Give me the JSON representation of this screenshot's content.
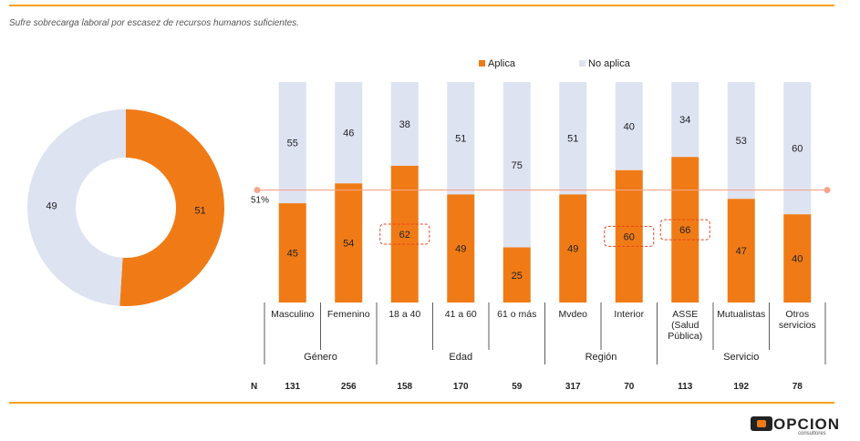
{
  "subtitle": "Sufre sobrecarga laboral por escasez de recursos humanos suficientes.",
  "logo": {
    "name": "OPCION",
    "tagline": "consultores"
  },
  "colors": {
    "aplica": "#f07b16",
    "no_aplica": "#dee3f2",
    "accent_rule": "#f7a21b",
    "ref_line": "#f4a58c"
  },
  "chart_data": [
    {
      "type": "pie",
      "variant": "donut",
      "slices": [
        {
          "label": "Aplica",
          "value": 51
        },
        {
          "label": "No aplica",
          "value": 49
        }
      ]
    },
    {
      "type": "bar",
      "stacked": true,
      "legend": [
        "Aplica",
        "No aplica"
      ],
      "legend_position": "top",
      "categories": [
        "Masculino",
        "Femenino",
        "18 a 40",
        "41 a 60",
        "61 o más",
        "Mvdeo",
        "Interior",
        "ASSE (Salud Pública)",
        "Mutualistas",
        "Otros servicios"
      ],
      "series": [
        {
          "name": "Aplica",
          "values": [
            45,
            54,
            62,
            49,
            25,
            49,
            60,
            66,
            47,
            40
          ]
        },
        {
          "name": "No aplica",
          "values": [
            55,
            46,
            38,
            51,
            75,
            51,
            40,
            34,
            53,
            60
          ]
        }
      ],
      "highlighted": [
        "18 a 40",
        "Interior",
        "ASSE (Salud Pública)"
      ],
      "reference_line": {
        "value": 51,
        "label": "51%"
      },
      "groups": [
        {
          "label": "Género",
          "span": 2
        },
        {
          "label": "Edad",
          "span": 3
        },
        {
          "label": "Región",
          "span": 2
        },
        {
          "label": "Servicio",
          "span": 3
        }
      ],
      "n_label": "N",
      "n_values": [
        131,
        256,
        158,
        170,
        59,
        317,
        70,
        113,
        192,
        78
      ],
      "ylim": [
        0,
        100
      ]
    }
  ]
}
